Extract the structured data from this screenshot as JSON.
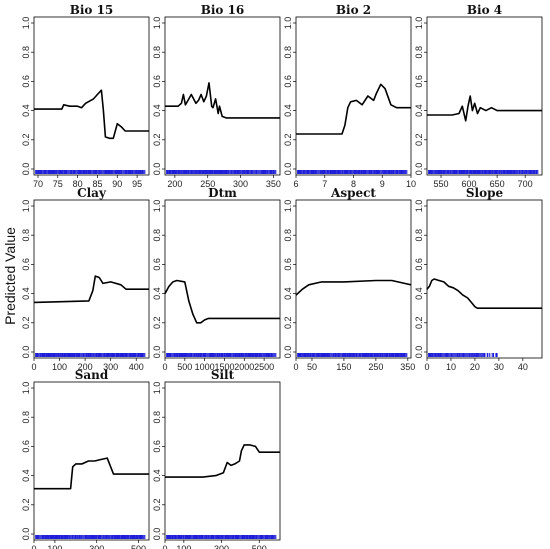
{
  "figure": {
    "ylabel": "Predicted Value"
  },
  "chart_data": [
    {
      "type": "line",
      "title": "Bio 15",
      "ylim": [
        0,
        1
      ],
      "xlim": [
        69,
        98
      ],
      "x_ticks": [
        70,
        75,
        80,
        85,
        90,
        95
      ],
      "y_ticks": [
        0.0,
        0.2,
        0.4,
        0.6,
        0.8,
        1.0
      ],
      "rug": "dense",
      "series": [
        {
          "x": [
            69,
            76,
            76.5,
            78,
            80,
            81,
            82,
            84,
            85,
            86,
            86.5,
            87,
            88,
            89,
            90,
            91,
            92,
            93,
            98
          ],
          "y": [
            0.41,
            0.41,
            0.44,
            0.43,
            0.43,
            0.42,
            0.45,
            0.48,
            0.51,
            0.54,
            0.4,
            0.22,
            0.21,
            0.21,
            0.31,
            0.29,
            0.26,
            0.26,
            0.26
          ]
        }
      ]
    },
    {
      "type": "line",
      "title": "Bio 16",
      "ylim": [
        0,
        1
      ],
      "xlim": [
        185,
        360
      ],
      "x_ticks": [
        200,
        250,
        300,
        350
      ],
      "y_ticks": [
        0.0,
        0.2,
        0.4,
        0.6,
        0.8,
        1.0
      ],
      "rug": "dense",
      "series": [
        {
          "x": [
            185,
            205,
            210,
            213,
            216,
            220,
            225,
            232,
            236,
            240,
            244,
            248,
            252,
            256,
            258,
            262,
            266,
            268,
            272,
            278,
            285,
            360
          ],
          "y": [
            0.43,
            0.43,
            0.45,
            0.51,
            0.44,
            0.47,
            0.51,
            0.45,
            0.47,
            0.51,
            0.46,
            0.5,
            0.59,
            0.43,
            0.42,
            0.48,
            0.38,
            0.43,
            0.36,
            0.35,
            0.35,
            0.35
          ]
        }
      ]
    },
    {
      "type": "line",
      "title": "Bio 2",
      "ylim": [
        0,
        1
      ],
      "xlim": [
        6,
        10
      ],
      "x_ticks": [
        6,
        7,
        8,
        9,
        10
      ],
      "y_ticks": [
        0.0,
        0.2,
        0.4,
        0.6,
        0.8,
        1.0
      ],
      "rug": "dense",
      "series": [
        {
          "x": [
            6,
            7.6,
            7.7,
            7.8,
            7.9,
            8.1,
            8.3,
            8.5,
            8.7,
            8.8,
            8.95,
            9.1,
            9.3,
            9.5,
            10
          ],
          "y": [
            0.24,
            0.24,
            0.3,
            0.42,
            0.46,
            0.47,
            0.44,
            0.5,
            0.47,
            0.52,
            0.58,
            0.55,
            0.44,
            0.42,
            0.42
          ]
        }
      ]
    },
    {
      "type": "line",
      "title": "Bio 4",
      "ylim": [
        0,
        1
      ],
      "xlim": [
        525,
        730
      ],
      "x_ticks": [
        550,
        600,
        650,
        700
      ],
      "y_ticks": [
        0.0,
        0.2,
        0.4,
        0.6,
        0.8,
        1.0
      ],
      "rug": "dense",
      "series": [
        {
          "x": [
            525,
            570,
            582,
            588,
            594,
            598,
            602,
            606,
            610,
            615,
            620,
            630,
            640,
            650,
            730
          ],
          "y": [
            0.37,
            0.37,
            0.38,
            0.43,
            0.33,
            0.43,
            0.5,
            0.4,
            0.45,
            0.38,
            0.42,
            0.4,
            0.42,
            0.4,
            0.4
          ]
        }
      ]
    },
    {
      "type": "line",
      "title": "Clay",
      "ylim": [
        0,
        1
      ],
      "xlim": [
        0,
        450
      ],
      "x_ticks": [
        0,
        100,
        200,
        300,
        400
      ],
      "y_ticks": [
        0.0,
        0.2,
        0.4,
        0.6,
        0.8,
        1.0
      ],
      "rug": "dense",
      "series": [
        {
          "x": [
            0,
            215,
            230,
            240,
            255,
            270,
            300,
            340,
            360,
            390,
            450
          ],
          "y": [
            0.34,
            0.35,
            0.42,
            0.52,
            0.51,
            0.47,
            0.48,
            0.46,
            0.43,
            0.43,
            0.43
          ]
        }
      ]
    },
    {
      "type": "line",
      "title": "Dtm",
      "ylim": [
        0,
        1
      ],
      "xlim": [
        0,
        2900
      ],
      "x_ticks": [
        0,
        500,
        1000,
        1500,
        2000,
        2500
      ],
      "y_ticks": [
        0.0,
        0.2,
        0.4,
        0.6,
        0.8,
        1.0
      ],
      "rug": "dense",
      "series": [
        {
          "x": [
            0,
            100,
            200,
            300,
            500,
            600,
            700,
            800,
            900,
            1000,
            1100,
            2900
          ],
          "y": [
            0.4,
            0.45,
            0.48,
            0.49,
            0.48,
            0.35,
            0.26,
            0.2,
            0.2,
            0.22,
            0.23,
            0.23
          ]
        }
      ]
    },
    {
      "type": "line",
      "title": "Aspect",
      "ylim": [
        0,
        1
      ],
      "xlim": [
        0,
        360
      ],
      "x_ticks": [
        0,
        50,
        150,
        250,
        350
      ],
      "y_ticks": [
        0.0,
        0.2,
        0.4,
        0.6,
        0.8,
        1.0
      ],
      "rug": "dense",
      "series": [
        {
          "x": [
            0,
            20,
            40,
            80,
            150,
            250,
            300,
            340,
            360
          ],
          "y": [
            0.39,
            0.43,
            0.46,
            0.48,
            0.48,
            0.49,
            0.49,
            0.47,
            0.46
          ]
        }
      ]
    },
    {
      "type": "line",
      "title": "Slope",
      "ylim": [
        0,
        1
      ],
      "xlim": [
        0,
        48
      ],
      "x_ticks": [
        0,
        10,
        20,
        30,
        40
      ],
      "y_ticks": [
        0.0,
        0.2,
        0.4,
        0.6,
        0.8,
        1.0
      ],
      "rug": "sparse",
      "series": [
        {
          "x": [
            0,
            1,
            2,
            3,
            5,
            7,
            9,
            11,
            13,
            15,
            17,
            19,
            20,
            21,
            22,
            24,
            48
          ],
          "y": [
            0.43,
            0.45,
            0.49,
            0.5,
            0.49,
            0.48,
            0.45,
            0.44,
            0.42,
            0.39,
            0.37,
            0.33,
            0.31,
            0.3,
            0.3,
            0.3,
            0.3
          ]
        }
      ]
    },
    {
      "type": "line",
      "title": "Sand",
      "ylim": [
        0,
        1
      ],
      "xlim": [
        0,
        550
      ],
      "x_ticks": [
        0,
        100,
        300,
        500
      ],
      "y_ticks": [
        0.0,
        0.2,
        0.4,
        0.6,
        0.8,
        1.0
      ],
      "rug": "dense",
      "series": [
        {
          "x": [
            0,
            175,
            185,
            200,
            230,
            260,
            290,
            320,
            350,
            380,
            550
          ],
          "y": [
            0.31,
            0.31,
            0.46,
            0.48,
            0.48,
            0.5,
            0.5,
            0.51,
            0.52,
            0.41,
            0.41
          ]
        }
      ]
    },
    {
      "type": "line",
      "title": "Silt",
      "ylim": [
        0,
        1
      ],
      "xlim": [
        0,
        610
      ],
      "x_ticks": [
        0,
        100,
        300,
        500
      ],
      "y_ticks": [
        0.0,
        0.2,
        0.4,
        0.6,
        0.8,
        1.0
      ],
      "rug": "dense",
      "series": [
        {
          "x": [
            0,
            200,
            270,
            310,
            330,
            350,
            370,
            395,
            405,
            420,
            450,
            480,
            500,
            510,
            610
          ],
          "y": [
            0.39,
            0.39,
            0.4,
            0.42,
            0.49,
            0.47,
            0.48,
            0.5,
            0.57,
            0.61,
            0.61,
            0.6,
            0.56,
            0.56,
            0.56
          ]
        }
      ]
    }
  ]
}
